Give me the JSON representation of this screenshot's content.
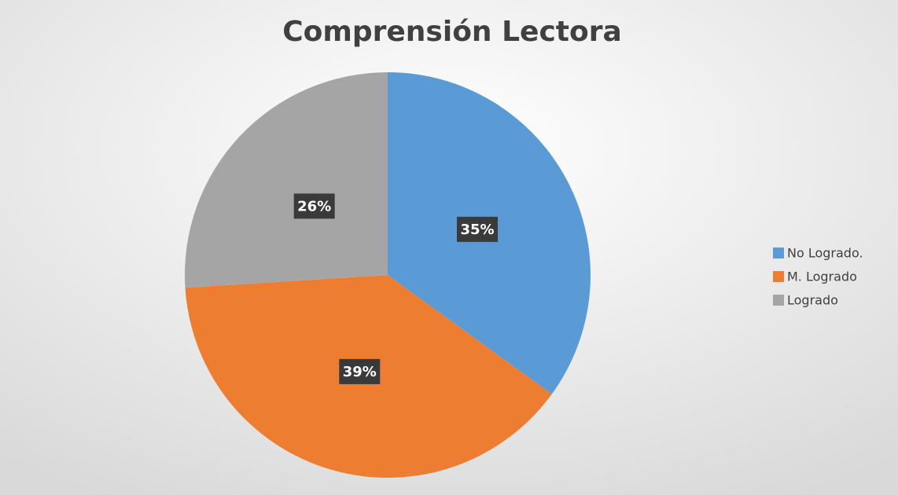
{
  "chart_data": {
    "type": "pie",
    "title": "Comprensión Lectora",
    "categories": [
      "No Logrado.",
      "M. Logrado",
      "Logrado"
    ],
    "values": [
      35,
      39,
      26
    ],
    "value_labels": [
      "35%",
      "39%",
      "26%"
    ],
    "colors": [
      "#5b9bd5",
      "#ed7d31",
      "#a5a5a5"
    ],
    "legend": "right"
  }
}
